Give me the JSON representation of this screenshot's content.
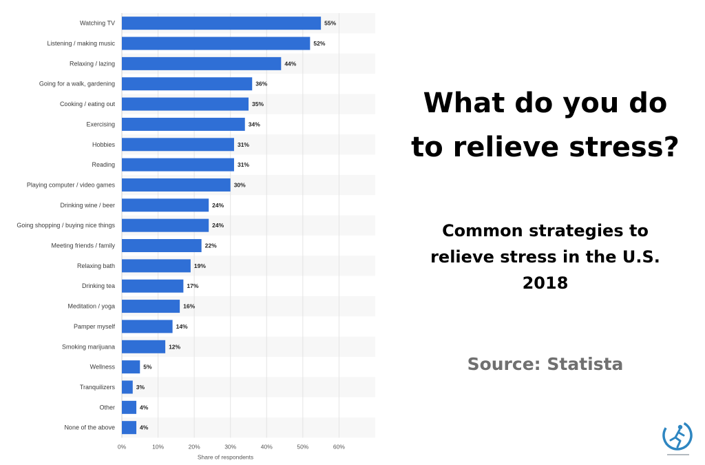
{
  "headline_line1": "What do you do",
  "headline_line2": "to relieve stress?",
  "subtitle_line1": "Common strategies to",
  "subtitle_line2": "relieve stress in the U.S.",
  "subtitle_line3": "2018",
  "source_text": "Source: Statista",
  "logo_icon": "runner-logo-icon",
  "colors": {
    "bar": "#2f6fd6",
    "headline": "#000000",
    "source": "#707070",
    "logo": "#2e86c1"
  },
  "chart_data": {
    "type": "bar",
    "orientation": "horizontal",
    "categories": [
      "Watching TV",
      "Listening / making music",
      "Relaxing / lazing",
      "Going for a walk, gardening",
      "Cooking / eating out",
      "Exercising",
      "Hobbies",
      "Reading",
      "Playing computer / video games",
      "Drinking wine / beer",
      "Going shopping / buying nice things",
      "Meeting friends / family",
      "Relaxing bath",
      "Drinking tea",
      "Meditation / yoga",
      "Pamper myself",
      "Smoking marijuana",
      "Wellness",
      "Tranquilizers",
      "Other",
      "None of the above"
    ],
    "values": [
      55,
      52,
      44,
      36,
      35,
      34,
      31,
      31,
      30,
      24,
      24,
      22,
      19,
      17,
      16,
      14,
      12,
      5,
      3,
      4,
      4
    ],
    "value_labels": [
      "55%",
      "52%",
      "44%",
      "36%",
      "35%",
      "34%",
      "31%",
      "31%",
      "30%",
      "24%",
      "24%",
      "22%",
      "19%",
      "17%",
      "16%",
      "14%",
      "12%",
      "5%",
      "3%",
      "4%",
      "4%"
    ],
    "xticks": [
      "0%",
      "10%",
      "20%",
      "30%",
      "40%",
      "50%",
      "60%"
    ],
    "xlim": [
      0,
      70
    ],
    "xlabel": "Share of respondents",
    "grid": true
  }
}
